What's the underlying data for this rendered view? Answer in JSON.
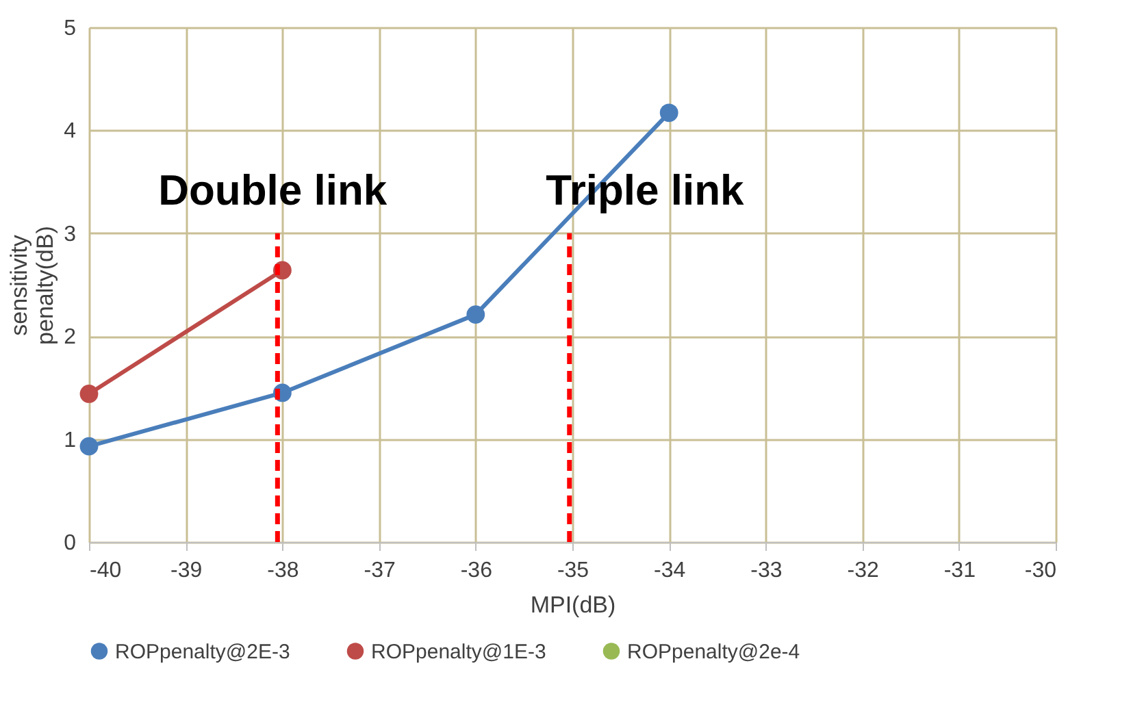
{
  "chart_data": {
    "type": "line",
    "xlabel": "MPI(dB)",
    "ylabel": "sensitivity\npenalty(dB)",
    "xlim": [
      -40,
      -30
    ],
    "xticks": [
      -40,
      -39,
      -38,
      -37,
      -36,
      -35,
      -34,
      -33,
      -32,
      -31,
      -30
    ],
    "ylim": [
      0,
      5
    ],
    "yticks": [
      0,
      1,
      2,
      3,
      4,
      5
    ],
    "grid": true,
    "legend": "bottom",
    "marker": "circle",
    "line_style": "solid",
    "series": [
      {
        "name": "ROPpenalty@2E-3",
        "color": "#4a7ebb",
        "x": [
          -40,
          -38,
          -36,
          -34
        ],
        "values": [
          0.93,
          1.45,
          2.21,
          4.17
        ]
      },
      {
        "name": "ROPpenalty@1E-3",
        "color": "#be4b48",
        "x": [
          -40,
          -38
        ],
        "values": [
          1.44,
          2.64
        ]
      },
      {
        "name": "ROPpenalty@2e-4",
        "color": "#98b954"
      }
    ],
    "ref_lines": [
      {
        "axis": "x",
        "value": -38.05,
        "color": "#ff0000",
        "line_style": "dashed"
      },
      {
        "axis": "x",
        "value": -35.03,
        "color": "#ff0000",
        "line_style": "dashed"
      }
    ],
    "annotations": [
      "Double link",
      "Triple link"
    ]
  }
}
